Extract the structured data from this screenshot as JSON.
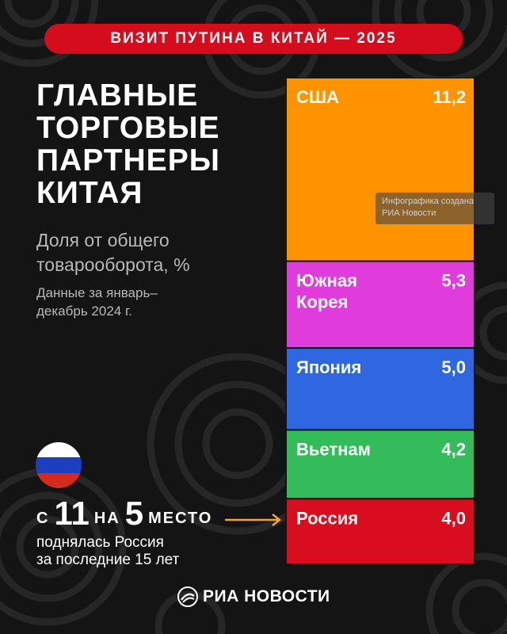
{
  "banner": "ВИЗИТ ПУТИНА В КИТАЙ — 2025",
  "headline": "ГЛАВНЫЕ\nТОРГОВЫЕ\nПАРТНЕРЫ\nКИТАЯ",
  "subtitle": "Доля от общего\nтоварооборота, %",
  "period": "Данные за январь–\nдекабрь 2024 г.",
  "watermark": "Инфографика создана\nРИА Новости",
  "russia_rank": {
    "from_word": "С",
    "from_rank": "11",
    "to_word": "НА",
    "to_rank": "5",
    "place_word": "МЕСТО",
    "description": "поднялась Россия\nза последние 15 лет"
  },
  "flag_colors": [
    "#ffffff",
    "#1c3fbf",
    "#d52b1e"
  ],
  "arrow_color": "#f2a33a",
  "logo_text": "РИА НОВОСТИ",
  "chart_data": {
    "type": "bar",
    "orientation": "stacked-vertical",
    "categories": [
      "США",
      "Южная Корея",
      "Япония",
      "Вьетнам",
      "Россия"
    ],
    "display_labels": [
      "США",
      "Южная\nКорея",
      "Япония",
      "Вьетнам",
      "Россия"
    ],
    "values": [
      11.2,
      5.3,
      5.0,
      4.2,
      4.0
    ],
    "value_labels": [
      "11,2",
      "5,3",
      "5,0",
      "4,2",
      "4,0"
    ],
    "colors": [
      "#ff9400",
      "#e03cdc",
      "#2f67e0",
      "#34bb5a",
      "#d80d1d"
    ]
  }
}
